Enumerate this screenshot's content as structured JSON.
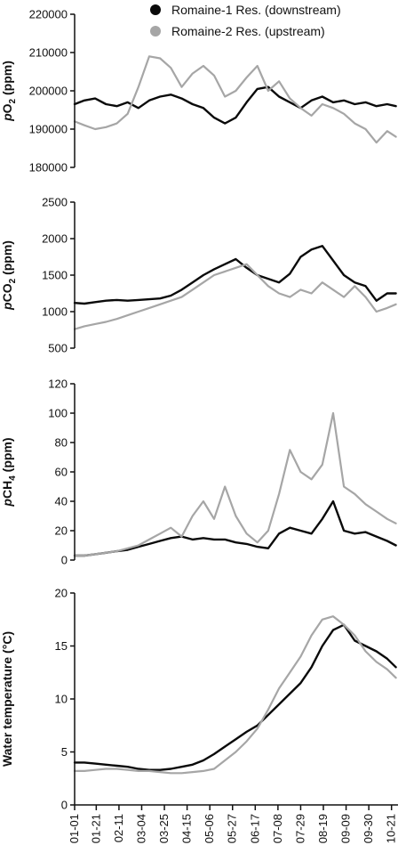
{
  "colors": {
    "downstream": "#0a0a0a",
    "upstream": "#a6a6a6",
    "axis": "#111111"
  },
  "legend": {
    "placement": "top",
    "items": [
      {
        "label": "Romaine-1 Res. (downstream)",
        "color": "#0a0a0a"
      },
      {
        "label": "Romaine-2 Res. (upstream)",
        "color": "#a6a6a6"
      }
    ]
  },
  "x_axis": {
    "tick_labels": [
      "01-01",
      "01-21",
      "02-11",
      "03-04",
      "03-25",
      "04-15",
      "05-06",
      "05-27",
      "06-17",
      "07-08",
      "07-29",
      "08-19",
      "09-09",
      "09-30",
      "10-21"
    ],
    "tick_days": [
      1,
      21,
      42,
      63,
      84,
      105,
      126,
      147,
      168,
      189,
      210,
      231,
      252,
      273,
      294
    ],
    "range_days": [
      1,
      300
    ]
  },
  "chart_data": [
    {
      "type": "line",
      "ylabel_main": "pO",
      "ylabel_sub": "2",
      "ylabel_unit": " (ppm)",
      "ylim": [
        180000,
        220000
      ],
      "yticks": [
        180000,
        190000,
        200000,
        210000,
        220000
      ],
      "ytick_labels": [
        "180000",
        "190000",
        "200000",
        "210000",
        "220000"
      ],
      "series": [
        {
          "name": "Romaine-1 Res. (downstream)",
          "x": [
            1,
            10,
            20,
            30,
            40,
            50,
            60,
            70,
            80,
            90,
            100,
            110,
            120,
            130,
            140,
            150,
            160,
            170,
            180,
            190,
            200,
            210,
            220,
            230,
            240,
            250,
            260,
            270,
            280,
            290,
            298
          ],
          "y": [
            196500,
            197500,
            198000,
            196500,
            196000,
            197000,
            195500,
            197500,
            198500,
            199000,
            198000,
            196500,
            195500,
            193000,
            191500,
            193000,
            197000,
            200500,
            201000,
            198500,
            197000,
            195500,
            197500,
            198500,
            197000,
            197500,
            196500,
            197000,
            196000,
            196500,
            196000
          ]
        },
        {
          "name": "Romaine-2 Res. (upstream)",
          "x": [
            1,
            10,
            20,
            30,
            40,
            50,
            60,
            70,
            80,
            90,
            100,
            110,
            120,
            130,
            140,
            150,
            160,
            170,
            180,
            190,
            200,
            210,
            220,
            230,
            240,
            250,
            260,
            270,
            280,
            290,
            298
          ],
          "y": [
            192000,
            191000,
            190000,
            190500,
            191500,
            194000,
            201000,
            209000,
            208500,
            206000,
            201000,
            204500,
            206500,
            204000,
            198500,
            200000,
            203500,
            206500,
            200000,
            202500,
            198000,
            195500,
            193500,
            196500,
            195500,
            194000,
            191500,
            190000,
            186500,
            189500,
            188000
          ]
        }
      ]
    },
    {
      "type": "line",
      "ylabel_main": "pCO",
      "ylabel_sub": "2",
      "ylabel_unit": " (ppm)",
      "ylim": [
        500,
        2500
      ],
      "yticks": [
        500,
        1000,
        1500,
        2000,
        2500
      ],
      "ytick_labels": [
        "500",
        "1000",
        "1500",
        "2000",
        "2500"
      ],
      "series": [
        {
          "name": "Romaine-1 Res. (downstream)",
          "x": [
            1,
            10,
            20,
            30,
            40,
            50,
            60,
            70,
            80,
            90,
            100,
            110,
            120,
            130,
            140,
            150,
            160,
            170,
            180,
            190,
            200,
            210,
            220,
            230,
            240,
            250,
            260,
            270,
            280,
            290,
            298
          ],
          "y": [
            1120,
            1110,
            1130,
            1150,
            1160,
            1150,
            1160,
            1170,
            1180,
            1220,
            1300,
            1400,
            1500,
            1580,
            1650,
            1720,
            1600,
            1500,
            1450,
            1400,
            1520,
            1750,
            1850,
            1900,
            1700,
            1500,
            1400,
            1350,
            1150,
            1250,
            1250
          ]
        },
        {
          "name": "Romaine-2 Res. (upstream)",
          "x": [
            1,
            10,
            20,
            30,
            40,
            50,
            60,
            70,
            80,
            90,
            100,
            110,
            120,
            130,
            140,
            150,
            160,
            170,
            180,
            190,
            200,
            210,
            220,
            230,
            240,
            250,
            260,
            270,
            280,
            290,
            298
          ],
          "y": [
            760,
            800,
            830,
            860,
            900,
            950,
            1000,
            1050,
            1100,
            1150,
            1200,
            1300,
            1400,
            1500,
            1550,
            1600,
            1650,
            1500,
            1350,
            1250,
            1200,
            1300,
            1250,
            1400,
            1300,
            1200,
            1350,
            1200,
            1000,
            1050,
            1100
          ]
        }
      ]
    },
    {
      "type": "line",
      "ylabel_main": "pCH",
      "ylabel_sub": "4",
      "ylabel_unit": " (ppm)",
      "ylim": [
        0,
        120
      ],
      "yticks": [
        0,
        20,
        40,
        60,
        80,
        100,
        120
      ],
      "ytick_labels": [
        "0",
        "20",
        "40",
        "60",
        "80",
        "100",
        "120"
      ],
      "series": [
        {
          "name": "Romaine-1 Res. (downstream)",
          "x": [
            1,
            10,
            20,
            30,
            40,
            50,
            60,
            70,
            80,
            90,
            100,
            110,
            120,
            130,
            140,
            150,
            160,
            170,
            180,
            190,
            200,
            210,
            220,
            230,
            240,
            250,
            260,
            270,
            280,
            290,
            298
          ],
          "y": [
            3,
            3,
            4,
            5,
            6,
            7,
            9,
            11,
            13,
            15,
            16,
            14,
            15,
            14,
            14,
            12,
            11,
            9,
            8,
            18,
            22,
            20,
            18,
            28,
            40,
            20,
            18,
            19,
            16,
            13,
            10
          ]
        },
        {
          "name": "Romaine-2 Res. (upstream)",
          "x": [
            1,
            10,
            20,
            30,
            40,
            50,
            60,
            70,
            80,
            90,
            100,
            110,
            120,
            130,
            140,
            150,
            160,
            170,
            180,
            190,
            200,
            210,
            220,
            230,
            240,
            250,
            260,
            270,
            280,
            290,
            298
          ],
          "y": [
            3,
            3,
            4,
            5,
            6,
            8,
            10,
            14,
            18,
            22,
            16,
            30,
            40,
            28,
            50,
            30,
            18,
            12,
            20,
            45,
            75,
            60,
            55,
            65,
            100,
            50,
            45,
            38,
            33,
            28,
            25
          ]
        }
      ]
    },
    {
      "type": "line",
      "ylabel_main": "Water temperature (°C)",
      "ylabel_sub": "",
      "ylabel_unit": "",
      "ylim": [
        0,
        20
      ],
      "yticks": [
        0,
        5,
        10,
        15,
        20
      ],
      "ytick_labels": [
        "0",
        "5",
        "10",
        "15",
        "20"
      ],
      "series": [
        {
          "name": "Romaine-1 Res. (downstream)",
          "x": [
            1,
            10,
            20,
            30,
            40,
            50,
            60,
            70,
            80,
            90,
            100,
            110,
            120,
            130,
            140,
            150,
            160,
            170,
            180,
            190,
            200,
            210,
            220,
            230,
            240,
            250,
            260,
            270,
            280,
            290,
            298
          ],
          "y": [
            4.0,
            4.0,
            3.9,
            3.8,
            3.7,
            3.6,
            3.4,
            3.3,
            3.3,
            3.4,
            3.6,
            3.8,
            4.2,
            4.8,
            5.5,
            6.2,
            6.9,
            7.5,
            8.5,
            9.5,
            10.5,
            11.5,
            13.0,
            15.0,
            16.5,
            17.0,
            15.5,
            15.0,
            14.5,
            13.8,
            13.0
          ]
        },
        {
          "name": "Romaine-2 Res. (upstream)",
          "x": [
            1,
            10,
            20,
            30,
            40,
            50,
            60,
            70,
            80,
            90,
            100,
            110,
            120,
            130,
            140,
            150,
            160,
            170,
            180,
            190,
            200,
            210,
            220,
            230,
            240,
            250,
            260,
            270,
            280,
            290,
            298
          ],
          "y": [
            3.2,
            3.2,
            3.3,
            3.4,
            3.4,
            3.3,
            3.2,
            3.2,
            3.1,
            3.0,
            3.0,
            3.1,
            3.2,
            3.4,
            4.2,
            5.0,
            6.0,
            7.2,
            9.0,
            11.0,
            12.5,
            14.0,
            16.0,
            17.5,
            17.8,
            17.0,
            16.0,
            14.5,
            13.5,
            12.8,
            12.0
          ]
        }
      ]
    }
  ]
}
